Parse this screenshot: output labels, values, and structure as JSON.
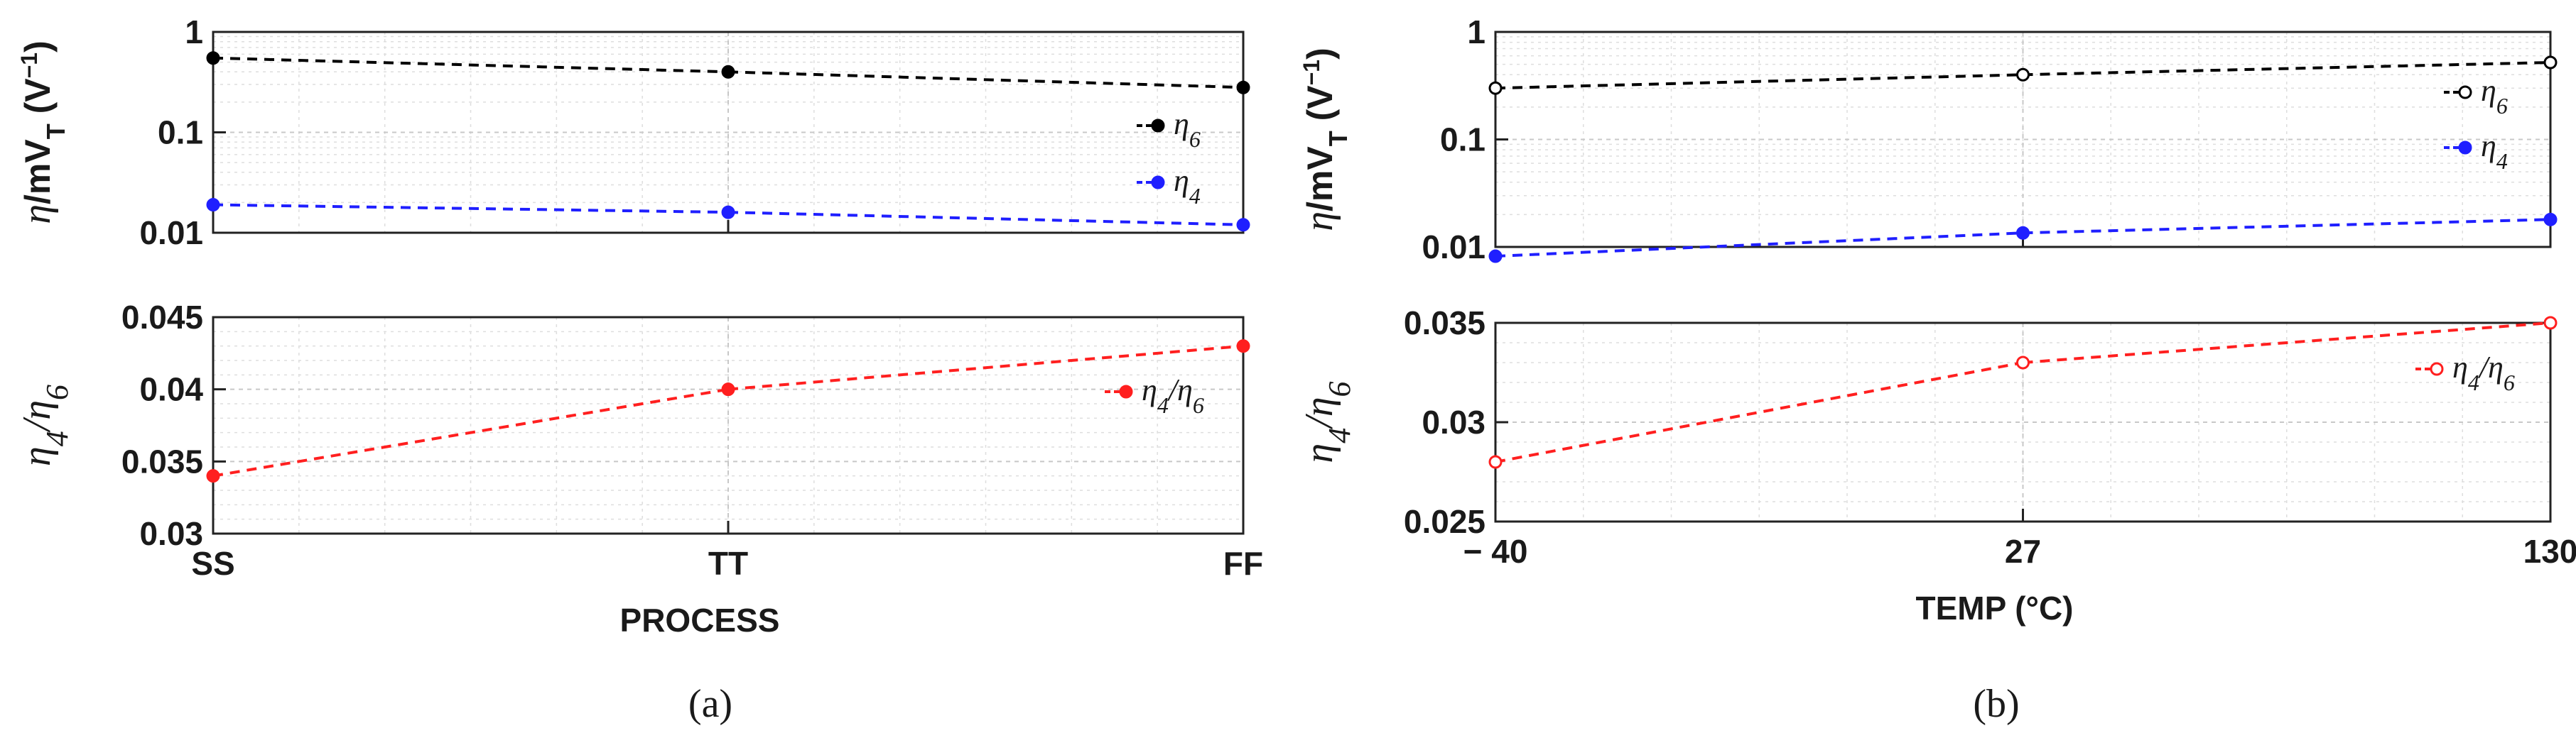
{
  "figure": {
    "caption_a": "(a)",
    "caption_b": "(b)"
  },
  "colors": {
    "eta6": "#000000",
    "eta4": "#1f1fff",
    "ratio": "#ff1f1f"
  },
  "chart_data": [
    {
      "id": "a-top",
      "type": "line",
      "title": "",
      "xlabel": "",
      "ylabel": "η/mV_T (V^−1)",
      "yscale": "log",
      "ylim": [
        0.01,
        1
      ],
      "yticks": [
        "0.01",
        "0.1",
        "1"
      ],
      "categories": [
        "SS",
        "TT",
        "FF"
      ],
      "series": [
        {
          "name": "η6",
          "values": [
            0.55,
            0.4,
            0.28
          ],
          "marker": "filled",
          "color": "#000000"
        },
        {
          "name": "η4",
          "values": [
            0.019,
            0.016,
            0.012
          ],
          "marker": "filled",
          "color": "#1f1fff"
        }
      ],
      "legend": "right",
      "grid": true
    },
    {
      "id": "a-bottom",
      "type": "line",
      "title": "",
      "xlabel": "PROCESS",
      "ylabel": "η4/η6",
      "ylim": [
        0.03,
        0.045
      ],
      "yticks": [
        "0.03",
        "0.035",
        "0.04",
        "0.045"
      ],
      "categories": [
        "SS",
        "TT",
        "FF"
      ],
      "series": [
        {
          "name": "η4/η6",
          "values": [
            0.034,
            0.04,
            0.043
          ],
          "marker": "filled",
          "color": "#ff1f1f"
        }
      ],
      "legend": "right",
      "grid": true
    },
    {
      "id": "b-top",
      "type": "line",
      "title": "",
      "xlabel": "",
      "ylabel": "η/mV_T (V^−1)",
      "yscale": "log",
      "ylim": [
        0.01,
        1
      ],
      "yticks": [
        "0.01",
        "0.1",
        "1"
      ],
      "categories": [
        "− 40",
        "27",
        "130"
      ],
      "series": [
        {
          "name": "η6",
          "values": [
            0.3,
            0.4,
            0.52
          ],
          "marker": "open",
          "color": "#000000"
        },
        {
          "name": "η4",
          "values": [
            0.0082,
            0.0135,
            0.018
          ],
          "marker": "filled",
          "color": "#1f1fff"
        }
      ],
      "legend": "right",
      "grid": true
    },
    {
      "id": "b-bottom",
      "type": "line",
      "title": "",
      "xlabel": "TEMP (°C)",
      "ylabel": "η4/η6",
      "ylim": [
        0.025,
        0.035
      ],
      "yticks": [
        "0.025",
        "0.03",
        "0.035"
      ],
      "categories": [
        "− 40",
        "27",
        "130"
      ],
      "series": [
        {
          "name": "η4/η6",
          "values": [
            0.028,
            0.033,
            0.035
          ],
          "marker": "open",
          "color": "#ff1f1f"
        }
      ],
      "legend": "right",
      "grid": true
    }
  ]
}
